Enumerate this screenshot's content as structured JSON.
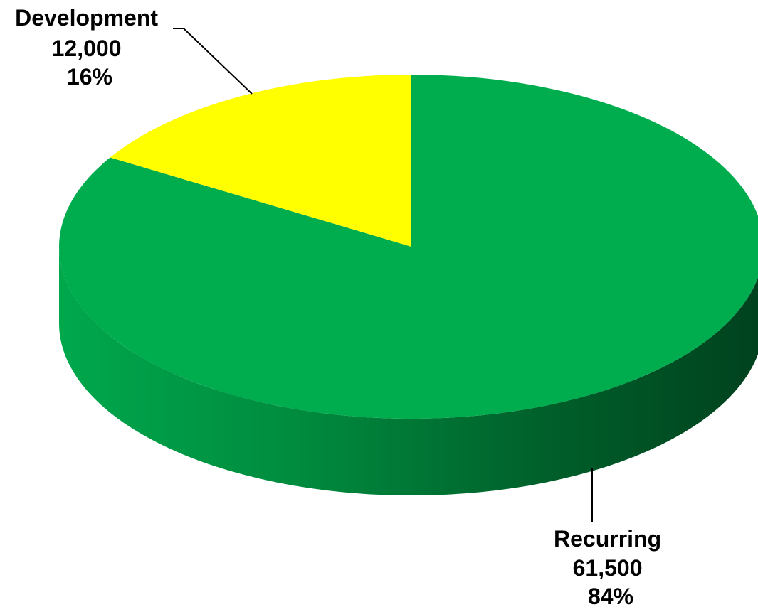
{
  "chart_data": {
    "type": "pie",
    "style": "3d",
    "slices": [
      {
        "name": "Recurring",
        "value": 61500,
        "value_label": "61,500",
        "percent_label": "84%",
        "color": "#00AD4E",
        "side_color_dark": "#00421E"
      },
      {
        "name": "Development",
        "value": 12000,
        "value_label": "12,000",
        "percent_label": "16%",
        "color": "#FFFF00",
        "side_color_dark": "#9A9A00"
      }
    ],
    "start_angle_deg": 0,
    "direction": "clockwise",
    "legend": "none"
  }
}
